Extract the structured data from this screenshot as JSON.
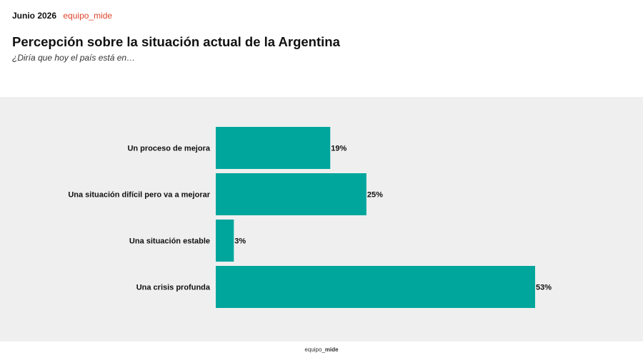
{
  "header": {
    "date": "Junio 2026",
    "brand": "equipo_mide",
    "title": "Percepción sobre la situación actual de la Argentina",
    "subtitle": "¿Diría que hoy el país está en…"
  },
  "footer": {
    "brand_prefix": "equipo_",
    "brand_suffix": "mide"
  },
  "colors": {
    "bar": "#00a69c",
    "panel": "#efefef",
    "brand": "#e0452c"
  },
  "chart_data": {
    "type": "bar",
    "orientation": "horizontal",
    "categories": [
      "Un proceso de mejora",
      "Una situación difícil pero va a mejorar",
      "Una situación estable",
      "Una crisis profunda"
    ],
    "values": [
      19,
      25,
      3,
      53
    ],
    "value_labels": [
      "19%",
      "25%",
      "3%",
      "53%"
    ],
    "unit": "%",
    "xlim": [
      0,
      53
    ],
    "grid": false,
    "legend": "none"
  }
}
